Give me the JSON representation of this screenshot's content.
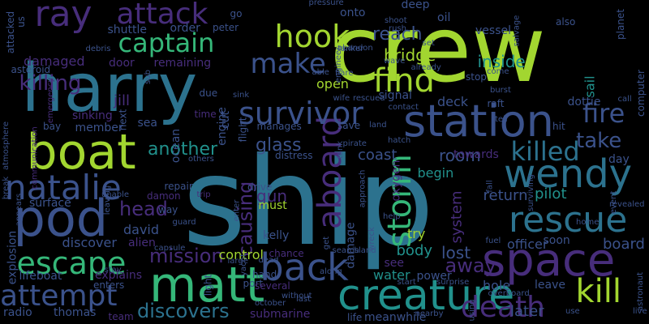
{
  "background": "#000000",
  "palette": {
    "lime": "#a2d630",
    "green": "#5ec962",
    "teal": "#21918c",
    "blue": "#2c728e",
    "steel": "#3b528b",
    "indigo": "#472d7b",
    "purple": "#440154",
    "seafoam": "#35b779"
  },
  "words": [
    {
      "text": "crew",
      "color": "lime",
      "rot": 0
    },
    {
      "text": "ship",
      "color": "blue",
      "rot": 0
    },
    {
      "text": "harry",
      "color": "blue",
      "rot": 0
    },
    {
      "text": "boat",
      "color": "lime",
      "rot": 0
    },
    {
      "text": "ray",
      "color": "indigo",
      "rot": 0
    },
    {
      "text": "attack",
      "color": "indigo",
      "rot": 0
    },
    {
      "text": "captain",
      "color": "seafoam",
      "rot": 0
    },
    {
      "text": "hook",
      "color": "lime",
      "rot": 0
    },
    {
      "text": "make",
      "color": "steel",
      "rot": 0
    },
    {
      "text": "find",
      "color": "lime",
      "rot": 0
    },
    {
      "text": "station",
      "color": "steel",
      "rot": 0
    },
    {
      "text": "pod",
      "color": "steel",
      "rot": 0
    },
    {
      "text": "matt",
      "color": "seafoam",
      "rot": 0
    },
    {
      "text": "space",
      "color": "indigo",
      "rot": 0
    },
    {
      "text": "rescue",
      "color": "blue",
      "rot": 0
    },
    {
      "text": "wendy",
      "color": "blue",
      "rot": 0
    },
    {
      "text": "back",
      "color": "steel",
      "rot": 0
    },
    {
      "text": "creature",
      "color": "teal",
      "rot": 0
    },
    {
      "text": "natalie",
      "color": "steel",
      "rot": 0
    },
    {
      "text": "escape",
      "color": "seafoam",
      "rot": 0
    },
    {
      "text": "attempt",
      "color": "steel",
      "rot": 0
    },
    {
      "text": "kill",
      "color": "lime",
      "rot": 0
    },
    {
      "text": "death",
      "color": "indigo",
      "rot": 0
    },
    {
      "text": "killed",
      "color": "blue",
      "rot": 0
    },
    {
      "text": "storm",
      "color": "seafoam",
      "rot": 270
    },
    {
      "text": "aboard",
      "color": "indigo",
      "rot": 270
    },
    {
      "text": "survivor",
      "color": "steel",
      "rot": 0
    },
    {
      "text": "fire",
      "color": "steel",
      "rot": 0
    },
    {
      "text": "take",
      "color": "steel",
      "rot": 0
    },
    {
      "text": "another",
      "color": "teal",
      "rot": 0
    },
    {
      "text": "glass",
      "color": "steel",
      "rot": 0
    },
    {
      "text": "head",
      "color": "indigo",
      "rot": 0
    },
    {
      "text": "mission",
      "color": "indigo",
      "rot": 0
    },
    {
      "text": "discovers",
      "color": "blue",
      "rot": 0
    },
    {
      "text": "causing",
      "color": "indigo",
      "rot": 270
    },
    {
      "text": "killing",
      "color": "indigo",
      "rot": 0
    },
    {
      "text": "reach",
      "color": "steel",
      "rot": 0
    },
    {
      "text": "bridge",
      "color": "lime",
      "rot": 0
    },
    {
      "text": "inside",
      "color": "teal",
      "rot": 0
    },
    {
      "text": "room",
      "color": "steel",
      "rot": 0
    },
    {
      "text": "deck",
      "color": "steel",
      "rot": 0
    },
    {
      "text": "coast",
      "color": "steel",
      "rot": 0
    },
    {
      "text": "begin",
      "color": "teal",
      "rot": 0
    },
    {
      "text": "away",
      "color": "indigo",
      "rot": 0
    },
    {
      "text": "lost",
      "color": "steel",
      "rot": 0
    },
    {
      "text": "body",
      "color": "teal",
      "rot": 0
    },
    {
      "text": "officer",
      "color": "steel",
      "rot": 0
    },
    {
      "text": "board",
      "color": "steel",
      "rot": 0
    },
    {
      "text": "pilot",
      "color": "teal",
      "rot": 0
    },
    {
      "text": "return",
      "color": "steel",
      "rot": 0
    },
    {
      "text": "later",
      "color": "steel",
      "rot": 0
    },
    {
      "text": "hole",
      "color": "steel",
      "rot": 0
    },
    {
      "text": "sail",
      "color": "teal",
      "rot": 270
    },
    {
      "text": "system",
      "color": "indigo",
      "rot": 270
    },
    {
      "text": "oxygen",
      "color": "indigo",
      "rot": 270
    },
    {
      "text": "gun",
      "color": "indigo",
      "rot": 0
    },
    {
      "text": "must",
      "color": "lime",
      "rot": 0
    },
    {
      "text": "kelly",
      "color": "steel",
      "rot": 0
    },
    {
      "text": "david",
      "color": "steel",
      "rot": 0
    },
    {
      "text": "alien",
      "color": "indigo",
      "rot": 0
    },
    {
      "text": "discover",
      "color": "steel",
      "rot": 0
    },
    {
      "text": "surface",
      "color": "steel",
      "rot": 0
    },
    {
      "text": "explosion",
      "color": "steel",
      "rot": 270
    },
    {
      "text": "lifeboat",
      "color": "steel",
      "rot": 0
    },
    {
      "text": "thomas",
      "color": "steel",
      "rot": 0
    },
    {
      "text": "radio",
      "color": "steel",
      "rot": 0
    },
    {
      "text": "submarine",
      "color": "indigo",
      "rot": 0
    },
    {
      "text": "meanwhile",
      "color": "steel",
      "rot": 0
    },
    {
      "text": "life",
      "color": "steel",
      "rot": 0
    },
    {
      "text": "control",
      "color": "lime",
      "rot": 0
    },
    {
      "text": "water",
      "color": "teal",
      "rot": 0
    },
    {
      "text": "power",
      "color": "steel",
      "rot": 0
    },
    {
      "text": "see",
      "color": "indigo",
      "rot": 0
    },
    {
      "text": "try",
      "color": "lime",
      "rot": 0
    },
    {
      "text": "damage",
      "color": "steel",
      "rot": 270
    },
    {
      "text": "explains",
      "color": "indigo",
      "rot": 0
    },
    {
      "text": "enters",
      "color": "steel",
      "rot": 0
    },
    {
      "text": "team",
      "color": "indigo",
      "rot": 0
    },
    {
      "text": "engine",
      "color": "steel",
      "rot": 270
    },
    {
      "text": "ocean",
      "color": "steel",
      "rot": 270
    },
    {
      "text": "jill",
      "color": "indigo",
      "rot": 0
    },
    {
      "text": "sea",
      "color": "steel",
      "rot": 0
    },
    {
      "text": "cut",
      "color": "steel",
      "rot": 270
    },
    {
      "text": "member",
      "color": "steel",
      "rot": 0
    },
    {
      "text": "sinking",
      "color": "indigo",
      "rot": 0
    },
    {
      "text": "damaged",
      "color": "indigo",
      "rot": 0
    },
    {
      "text": "shuttle",
      "color": "steel",
      "rot": 0
    },
    {
      "text": "order",
      "color": "steel",
      "rot": 0
    },
    {
      "text": "peter",
      "color": "steel",
      "rot": 0
    },
    {
      "text": "remaining",
      "color": "indigo",
      "rot": 0
    },
    {
      "text": "door",
      "color": "indigo",
      "rot": 0
    },
    {
      "text": "open",
      "color": "lime",
      "rot": 0
    },
    {
      "text": "signal",
      "color": "steel",
      "rot": 0
    },
    {
      "text": "vessel",
      "color": "steel",
      "rot": 0
    },
    {
      "text": "onto",
      "color": "steel",
      "rot": 0
    },
    {
      "text": "deep",
      "color": "steel",
      "rot": 0
    },
    {
      "text": "oil",
      "color": "steel",
      "rot": 0
    },
    {
      "text": "go",
      "color": "steel",
      "rot": 0
    },
    {
      "text": "dottie",
      "color": "steel",
      "rot": 0
    },
    {
      "text": "hit",
      "color": "steel",
      "rot": 0
    },
    {
      "text": "day",
      "color": "steel",
      "rot": 0
    },
    {
      "text": "soon",
      "color": "steel",
      "rot": 0
    },
    {
      "text": "leave",
      "color": "steel",
      "rot": 0
    },
    {
      "text": "distress",
      "color": "steel",
      "rot": 0
    },
    {
      "text": "manages",
      "color": "steel",
      "rot": 0
    },
    {
      "text": "save",
      "color": "steel",
      "rot": 0
    },
    {
      "text": "towards",
      "color": "indigo",
      "rot": 0
    },
    {
      "text": "port",
      "color": "steel",
      "rot": 0
    },
    {
      "text": "drive",
      "color": "steel",
      "rot": 0
    },
    {
      "text": "repair",
      "color": "steel",
      "rot": 0
    },
    {
      "text": "way",
      "color": "steel",
      "rot": 0
    },
    {
      "text": "damon",
      "color": "indigo",
      "rot": 0
    },
    {
      "text": "chance",
      "color": "indigo",
      "rot": 0
    },
    {
      "text": "several",
      "color": "indigo",
      "rot": 0
    },
    {
      "text": "hand",
      "color": "steel",
      "rot": 0
    },
    {
      "text": "light",
      "color": "steel",
      "rot": 270
    },
    {
      "text": "dead",
      "color": "steel",
      "rot": 0
    },
    {
      "text": "october",
      "color": "steel",
      "rot": 0
    },
    {
      "text": "last",
      "color": "steel",
      "rot": 0
    },
    {
      "text": "start",
      "color": "steel",
      "rot": 0
    },
    {
      "text": "nearby",
      "color": "steel",
      "rot": 0
    },
    {
      "text": "surprise",
      "color": "steel",
      "rot": 0
    },
    {
      "text": "overboard",
      "color": "steel",
      "rot": 0
    },
    {
      "text": "island",
      "color": "steel",
      "rot": 0
    },
    {
      "text": "search",
      "color": "steel",
      "rot": 0
    },
    {
      "text": "along",
      "color": "steel",
      "rot": 0
    },
    {
      "text": "help",
      "color": "steel",
      "rot": 0
    },
    {
      "text": "fuel",
      "color": "steel",
      "rot": 0
    },
    {
      "text": "astronaut",
      "color": "steel",
      "rot": 270
    },
    {
      "text": "use",
      "color": "steel",
      "rot": 0
    },
    {
      "text": "live",
      "color": "steel",
      "rot": 0
    },
    {
      "text": "computer",
      "color": "steel",
      "rot": 270
    },
    {
      "text": "planet",
      "color": "steel",
      "rot": 270
    },
    {
      "text": "also",
      "color": "steel",
      "rot": 0
    },
    {
      "text": "call",
      "color": "steel",
      "rot": 0
    },
    {
      "text": "event",
      "color": "steel",
      "rot": 270
    },
    {
      "text": "revealed",
      "color": "steel",
      "rot": 0
    },
    {
      "text": "home",
      "color": "steel",
      "rot": 0
    },
    {
      "text": "stop",
      "color": "steel",
      "rot": 0
    },
    {
      "text": "burst",
      "color": "steel",
      "rot": 0
    },
    {
      "text": "come",
      "color": "steel",
      "rot": 0
    },
    {
      "text": "raft",
      "color": "steel",
      "rot": 0
    },
    {
      "text": "tell",
      "color": "steel",
      "rot": 0
    },
    {
      "text": "already",
      "color": "steel",
      "rot": 0
    },
    {
      "text": "wave",
      "color": "steel",
      "rot": 0
    },
    {
      "text": "shoot",
      "color": "steel",
      "rot": 0
    },
    {
      "text": "rush",
      "color": "steel",
      "rot": 0
    },
    {
      "text": "pressure",
      "color": "steel",
      "rot": 0
    },
    {
      "text": "salvage",
      "color": "steel",
      "rot": 270
    },
    {
      "text": "set",
      "color": "steel",
      "rot": 0
    },
    {
      "text": "tanker",
      "color": "steel",
      "rot": 0
    },
    {
      "text": "abandon",
      "color": "steel",
      "rot": 0
    },
    {
      "text": "engineer",
      "color": "steel",
      "rot": 270
    },
    {
      "text": "able",
      "color": "steel",
      "rot": 0
    },
    {
      "text": "flare",
      "color": "steel",
      "rot": 0
    },
    {
      "text": "wife",
      "color": "steel",
      "rot": 0
    },
    {
      "text": "rescued",
      "color": "steel",
      "rot": 0
    },
    {
      "text": "contact",
      "color": "steel",
      "rot": 0
    },
    {
      "text": "land",
      "color": "steel",
      "rot": 0
    },
    {
      "text": "hatch",
      "color": "steel",
      "rot": 0
    },
    {
      "text": "pirate",
      "color": "steel",
      "rot": 0
    },
    {
      "text": "approach",
      "color": "steel",
      "rot": 270
    },
    {
      "text": "fall",
      "color": "steel",
      "rot": 270
    },
    {
      "text": "surviving",
      "color": "steel",
      "rot": 270
    },
    {
      "text": "tank",
      "color": "steel",
      "rot": 270
    },
    {
      "text": "sink",
      "color": "steel",
      "rot": 0
    },
    {
      "text": "flight",
      "color": "steel",
      "rot": 270
    },
    {
      "text": "others",
      "color": "steel",
      "rot": 0
    },
    {
      "text": "without",
      "color": "steel",
      "rot": 0
    },
    {
      "text": "due",
      "color": "steel",
      "rot": 0
    },
    {
      "text": "time",
      "color": "indigo",
      "rot": 0
    },
    {
      "text": "next",
      "color": "steel",
      "rot": 270
    },
    {
      "text": "bay",
      "color": "steel",
      "rot": 0
    },
    {
      "text": "sub",
      "color": "steel",
      "rot": 270
    },
    {
      "text": "asteroid",
      "color": "steel",
      "rot": 0
    },
    {
      "text": "debris",
      "color": "steel",
      "rot": 0
    },
    {
      "text": "attacked",
      "color": "steel",
      "rot": 270
    },
    {
      "text": "us",
      "color": "steel",
      "rot": 270
    },
    {
      "text": "emergency",
      "color": "indigo",
      "rot": 270
    },
    {
      "text": "communication",
      "color": "indigo",
      "rot": 270
    },
    {
      "text": "atmosphere",
      "color": "steel",
      "rot": 270
    },
    {
      "text": "break",
      "color": "steel",
      "rot": 270
    },
    {
      "text": "appears",
      "color": "steel",
      "rot": 270
    },
    {
      "text": "unable",
      "color": "steel",
      "rot": 0
    },
    {
      "text": "stay",
      "color": "steel",
      "rot": 0
    },
    {
      "text": "guard",
      "color": "steel",
      "rot": 0
    },
    {
      "text": "capsule",
      "color": "steel",
      "rot": 0
    },
    {
      "text": "large",
      "color": "steel",
      "rot": 0
    },
    {
      "text": "trip",
      "color": "indigo",
      "rot": 0
    },
    {
      "text": "enter",
      "color": "steel",
      "rot": 270
    },
    {
      "text": "leaving",
      "color": "steel",
      "rot": 270
    },
    {
      "text": "get",
      "color": "steel",
      "rot": 270
    },
    {
      "text": "wreck",
      "color": "steel",
      "rot": 270
    },
    {
      "text": "yacht",
      "color": "steel",
      "rot": 270
    },
    {
      "text": "using",
      "color": "steel",
      "rot": 270
    }
  ]
}
